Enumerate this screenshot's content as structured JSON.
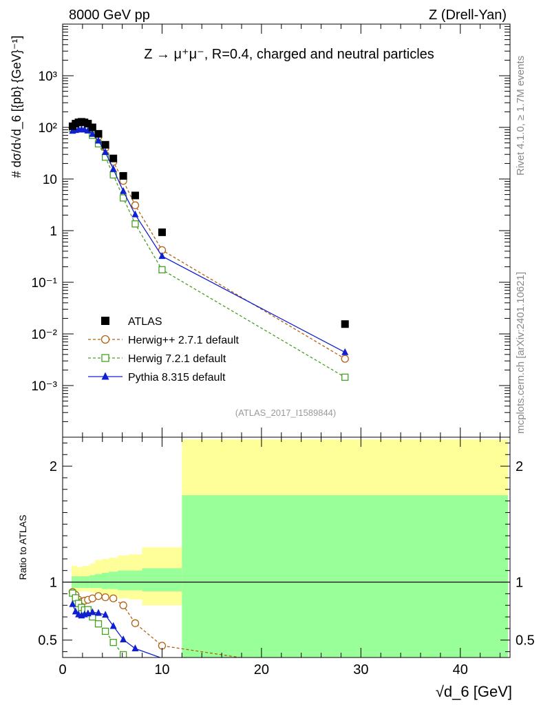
{
  "header": {
    "left": "8000 GeV pp",
    "right": "Z (Drell-Yan)"
  },
  "side_labels": {
    "rivet": "Rivet 4.1.0, ≥ 1.7M events",
    "mcplots": "mcplots.cern.ch [arXiv:2401.10621]"
  },
  "chart_data": {
    "type": "line",
    "title": "Z → μ⁺μ⁻, R=0.4, charged and neutral particles",
    "analysis_tag": "(ATLAS_2017_I1589844)",
    "xlabel": "√d_6 [GeV]",
    "ylabel": "# dσ/d√d_6 [{pb} {GeV}⁻¹]",
    "ylabel_ratio": "Ratio to ATLAS",
    "xlim": [
      0,
      45
    ],
    "ylim": [
      0.0001,
      10000
    ],
    "ylim_ratio": [
      0.35,
      2.25
    ],
    "x_ticks": [
      0,
      10,
      20,
      30,
      40
    ],
    "y_ticks": [
      {
        "value": 1000,
        "label": "10³"
      },
      {
        "value": 100,
        "label": "10²"
      },
      {
        "value": 10,
        "label": "10"
      },
      {
        "value": 1,
        "label": "1"
      },
      {
        "value": 0.1,
        "label": "10⁻¹"
      },
      {
        "value": 0.01,
        "label": "10⁻²"
      },
      {
        "value": 0.001,
        "label": "10⁻³"
      }
    ],
    "ratio_ticks": [
      {
        "value": 0.5,
        "label": "0.5"
      },
      {
        "value": 1,
        "label": "1"
      },
      {
        "value": 2,
        "label": "2"
      }
    ],
    "x": [
      1.0,
      1.3,
      1.6,
      1.9,
      2.2,
      2.55,
      3.0,
      3.6,
      4.3,
      5.1,
      6.1,
      7.3,
      10.0,
      28.4
    ],
    "bin_edges": [
      0.9,
      1.15,
      1.45,
      1.75,
      2.05,
      2.35,
      2.75,
      3.25,
      3.95,
      4.65,
      5.55,
      6.65,
      8.0,
      12.0,
      44.8
    ],
    "band_inner": [
      [
        0.95,
        1.05
      ],
      [
        0.95,
        1.05
      ],
      [
        0.95,
        1.05
      ],
      [
        0.95,
        1.05
      ],
      [
        0.95,
        1.05
      ],
      [
        0.95,
        1.05
      ],
      [
        0.95,
        1.06
      ],
      [
        0.95,
        1.07
      ],
      [
        0.94,
        1.08
      ],
      [
        0.94,
        1.09
      ],
      [
        0.93,
        1.1
      ],
      [
        0.93,
        1.1
      ],
      [
        0.92,
        1.12
      ],
      [
        0.34,
        1.75
      ]
    ],
    "band_outer": [
      [
        0.92,
        1.14
      ],
      [
        0.92,
        1.14
      ],
      [
        0.92,
        1.13
      ],
      [
        0.92,
        1.13
      ],
      [
        0.92,
        1.14
      ],
      [
        0.92,
        1.14
      ],
      [
        0.91,
        1.16
      ],
      [
        0.9,
        1.19
      ],
      [
        0.89,
        1.2
      ],
      [
        0.88,
        1.21
      ],
      [
        0.86,
        1.23
      ],
      [
        0.85,
        1.24
      ],
      [
        0.8,
        1.3
      ],
      [
        0.34,
        2.23
      ]
    ],
    "series": [
      {
        "name": "ATLAS",
        "marker": "square-filled",
        "color": "#000000",
        "values": [
          105,
          118,
          125,
          128,
          125,
          118,
          100,
          75,
          46,
          25,
          11.5,
          4.8,
          0.93,
          0.0155
        ]
      },
      {
        "name": "Herwig++ 2.7.1 default",
        "marker": "circle-open",
        "color": "#b06010",
        "dash": "4,3",
        "values": [
          96,
          105,
          106,
          106,
          105,
          100,
          86,
          66,
          40,
          21.5,
          9.2,
          3.1,
          0.42,
          0.0033
        ]
      },
      {
        "name": "Herwig 7.2.1 default",
        "marker": "square-open",
        "color": "#44a020",
        "dash": "4,3",
        "values": [
          95,
          102,
          102,
          100,
          95,
          90,
          70,
          48,
          26.5,
          12,
          4.3,
          1.35,
          0.175,
          0.00145
        ]
      },
      {
        "name": "Pythia 8.315 default",
        "marker": "triangle-filled",
        "color": "#1020d0",
        "values": [
          85,
          88,
          90,
          91,
          90,
          86,
          74,
          55,
          33,
          15.5,
          5.8,
          2.05,
          0.32,
          0.0044
        ]
      }
    ]
  }
}
